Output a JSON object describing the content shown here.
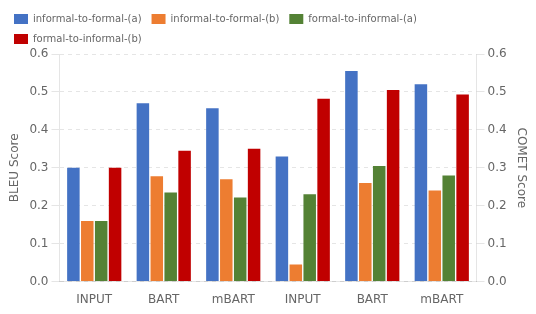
{
  "chart_data": {
    "type": "bar",
    "categories": [
      "INPUT",
      "BART",
      "mBART",
      "INPUT",
      "BART",
      "mBART"
    ],
    "series": [
      {
        "name": "informal-to-formal-(a)",
        "color": "#4472C4",
        "values": [
          0.3,
          0.47,
          0.457,
          0.33,
          0.555,
          0.52
        ]
      },
      {
        "name": "informal-to-formal-(b)",
        "color": "#ED7D31",
        "values": [
          0.16,
          0.278,
          0.27,
          0.045,
          0.26,
          0.24
        ]
      },
      {
        "name": "formal-to-informal-(a)",
        "color": "#548235",
        "values": [
          0.16,
          0.235,
          0.222,
          0.23,
          0.305,
          0.28
        ]
      },
      {
        "name": "formal-to-informal-(b)",
        "color": "#C00000",
        "values": [
          0.3,
          0.345,
          0.35,
          0.482,
          0.505,
          0.493
        ]
      }
    ],
    "ylabel": "BLEU Score",
    "y2label": "COMET Score",
    "ylim": [
      0.0,
      0.6
    ],
    "yticks": [
      {
        "value": 0,
        "label": "0.0"
      },
      0.1,
      0.2,
      0.3,
      0.4,
      0.5,
      0.6
    ],
    "y2lim": [
      0.0,
      0.6
    ],
    "y2ticks": [
      {
        "value": 0,
        "label": "0.0"
      },
      0.1,
      0.2,
      0.3,
      0.4,
      0.5,
      0.6
    ],
    "grid": true,
    "legend": "upper left"
  }
}
